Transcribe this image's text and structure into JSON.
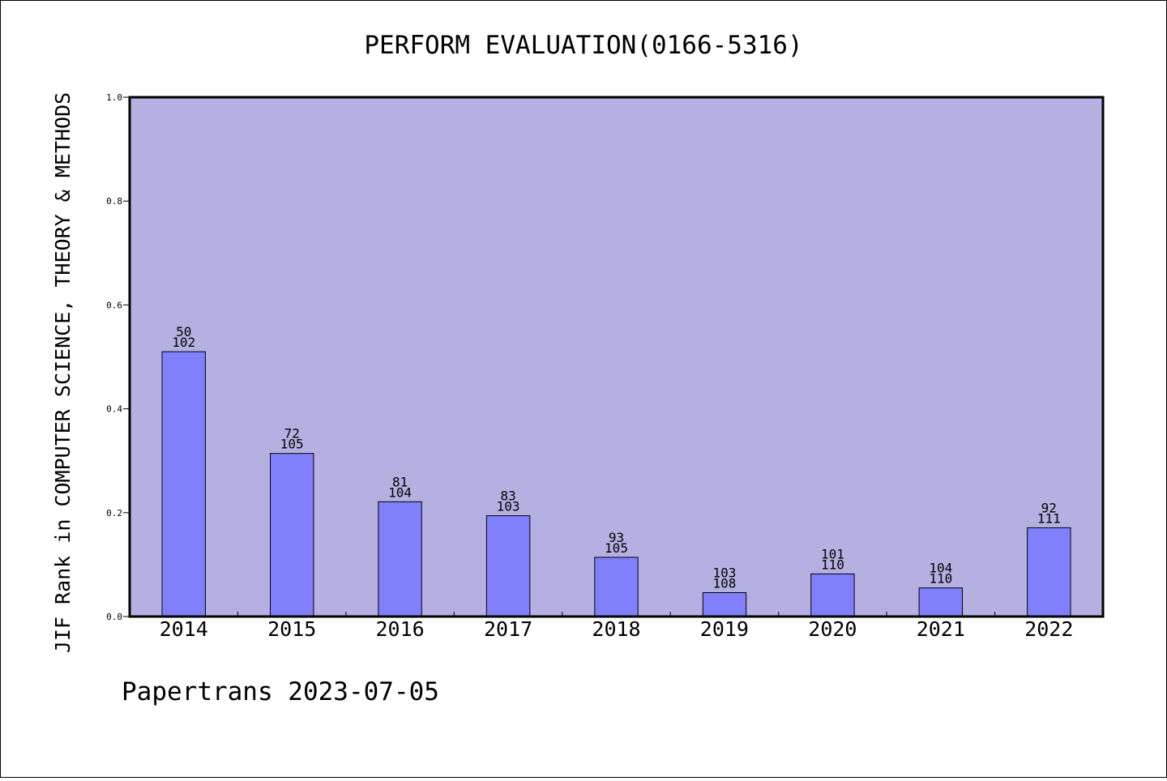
{
  "chart_data": {
    "type": "bar",
    "title": "PERFORM EVALUATION(0166-5316)",
    "ylabel": "JIF Rank in COMPUTER SCIENCE, THEORY & METHODS",
    "xlabel": "",
    "footer": "Papertrans 2023-07-05",
    "categories": [
      "2014",
      "2015",
      "2016",
      "2017",
      "2018",
      "2019",
      "2020",
      "2021",
      "2022"
    ],
    "values": [
      0.51,
      0.314,
      0.221,
      0.194,
      0.114,
      0.046,
      0.082,
      0.055,
      0.171
    ],
    "bar_labels": [
      {
        "rank": "50",
        "total": "102"
      },
      {
        "rank": "72",
        "total": "105"
      },
      {
        "rank": "81",
        "total": "104"
      },
      {
        "rank": "83",
        "total": "103"
      },
      {
        "rank": "93",
        "total": "105"
      },
      {
        "rank": "103",
        "total": "108"
      },
      {
        "rank": "101",
        "total": "110"
      },
      {
        "rank": "104",
        "total": "110"
      },
      {
        "rank": "92",
        "total": "111"
      }
    ],
    "ylim": [
      0,
      1.0
    ],
    "yticks": [
      "0.0",
      "0.2",
      "0.4",
      "0.6",
      "0.8",
      "1.0"
    ],
    "grid": false,
    "colors": {
      "plot_background": "#b6b0e2",
      "bar_fill": "#8080fc",
      "bar_stroke": "#000000"
    }
  }
}
